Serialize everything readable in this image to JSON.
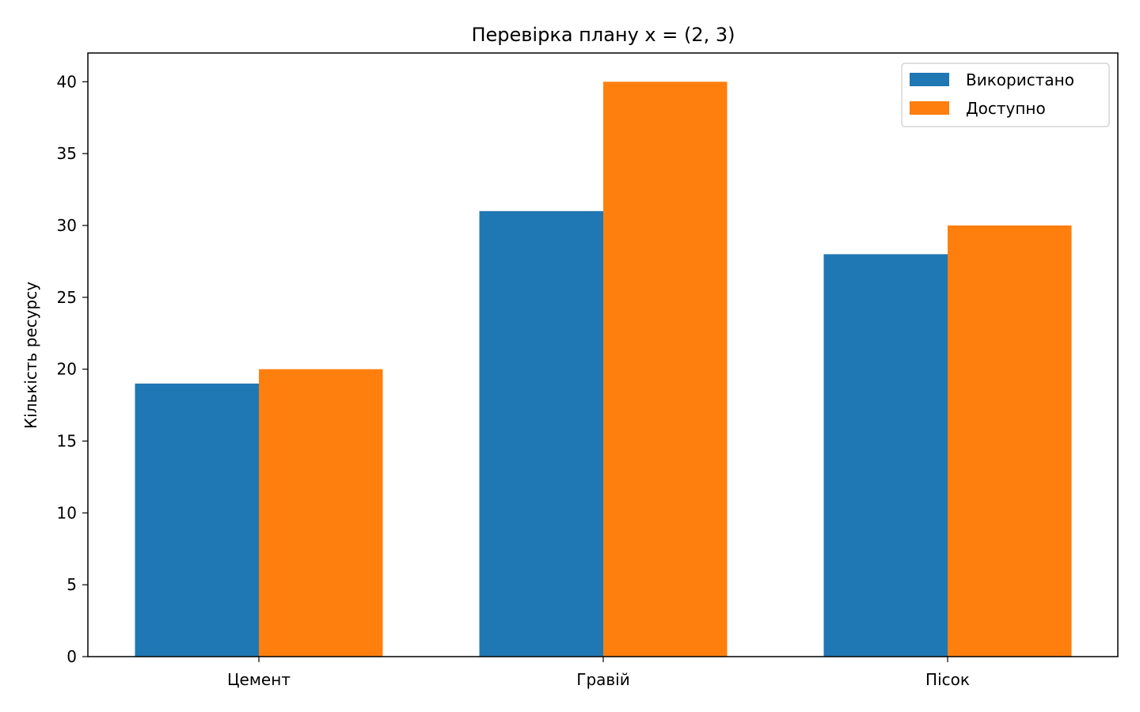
{
  "chart_data": {
    "type": "bar",
    "title": "Перевірка плану x = (2, 3)",
    "xlabel": "",
    "ylabel": "Кількість ресурсу",
    "categories": [
      "Цемент",
      "Гравій",
      "Пісок"
    ],
    "series": [
      {
        "name": "Використано",
        "values": [
          19,
          31,
          28
        ],
        "color": "#1f77b4"
      },
      {
        "name": "Доступно",
        "values": [
          20,
          40,
          30
        ],
        "color": "#ff7f0e"
      }
    ],
    "ylim": [
      0,
      42
    ],
    "yticks": [
      0,
      5,
      10,
      15,
      20,
      25,
      30,
      35,
      40
    ],
    "grid": false,
    "legend_position": "top-right"
  }
}
